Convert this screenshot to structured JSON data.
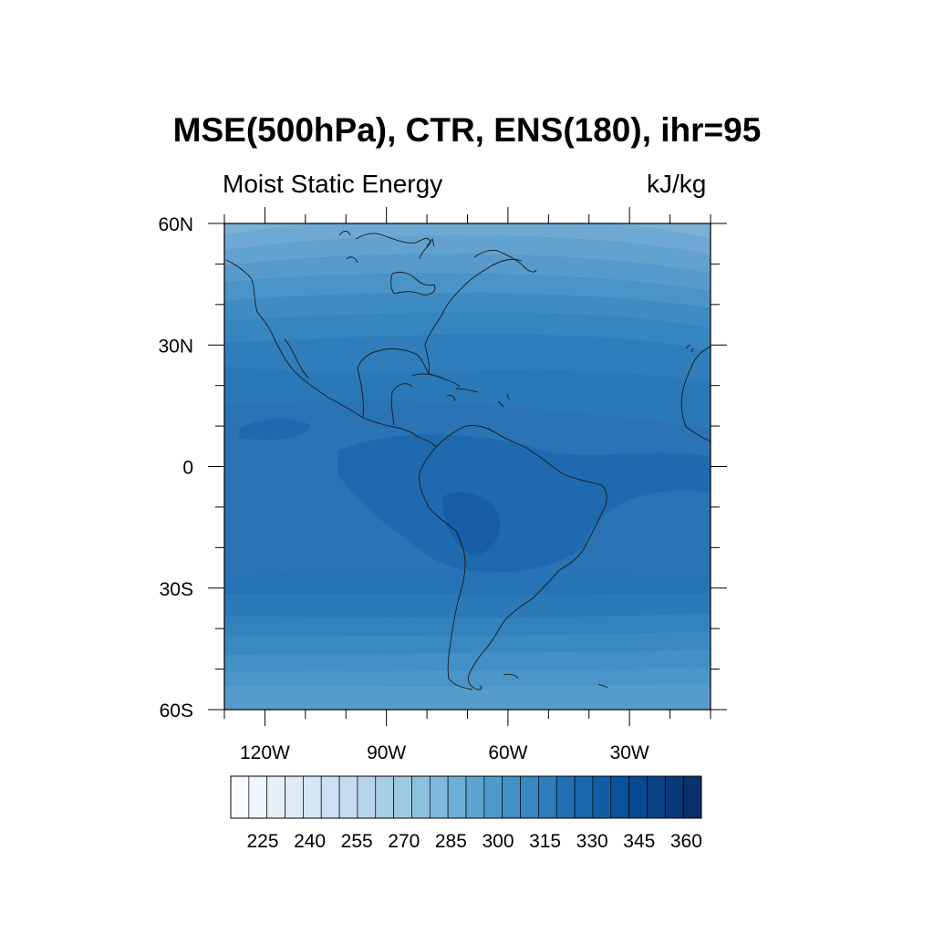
{
  "title": "MSE(500hPa), CTR, ENS(180), ihr=95",
  "subtitle_left": "Moist Static Energy",
  "subtitle_right": "kJ/kg",
  "map": {
    "region": "Americas",
    "lat_range": [
      -60,
      60
    ],
    "lon_range": [
      -130,
      -10
    ],
    "lat_tick_labels": [
      "60N",
      "30N",
      "0",
      "30S",
      "60S"
    ],
    "lat_tick_values": [
      60,
      30,
      0,
      -30,
      -60
    ],
    "lon_tick_labels": [
      "120W",
      "90W",
      "60W",
      "30W"
    ],
    "lon_tick_values": [
      -120,
      -90,
      -60,
      -30
    ]
  },
  "colorbar": {
    "tick_labels": [
      "225",
      "240",
      "255",
      "270",
      "285",
      "300",
      "315",
      "330",
      "345",
      "360"
    ],
    "colors": [
      "#f7fbff",
      "#eef5fc",
      "#e6f0f9",
      "#deebf7",
      "#d6e6f4",
      "#cde0f1",
      "#c6dbef",
      "#b7d4ea",
      "#a8cee4",
      "#9ecae1",
      "#8dc0dd",
      "#7eb8da",
      "#6baed6",
      "#5da4d1",
      "#4e9acb",
      "#4292c6",
      "#3888c1",
      "#2e7ebc",
      "#2171b5",
      "#1967ad",
      "#125ea6",
      "#08519c",
      "#084a91",
      "#084285",
      "#083a7a",
      "#08306b"
    ]
  },
  "colors": {
    "band_colors_north_to_south": [
      "#7bb2d8",
      "#6eaad4",
      "#60a2cf",
      "#559bcb",
      "#4993c7",
      "#3f8cc3",
      "#3584bf",
      "#2e7dbb",
      "#2776b7",
      "#2370b3",
      "#1f6aaf",
      "#1c65ab",
      "#185ea6",
      "#2370b3",
      "#2776b7",
      "#2e7dbb",
      "#3584bf",
      "#3f8cc3",
      "#4993c7",
      "#559bcb"
    ]
  }
}
